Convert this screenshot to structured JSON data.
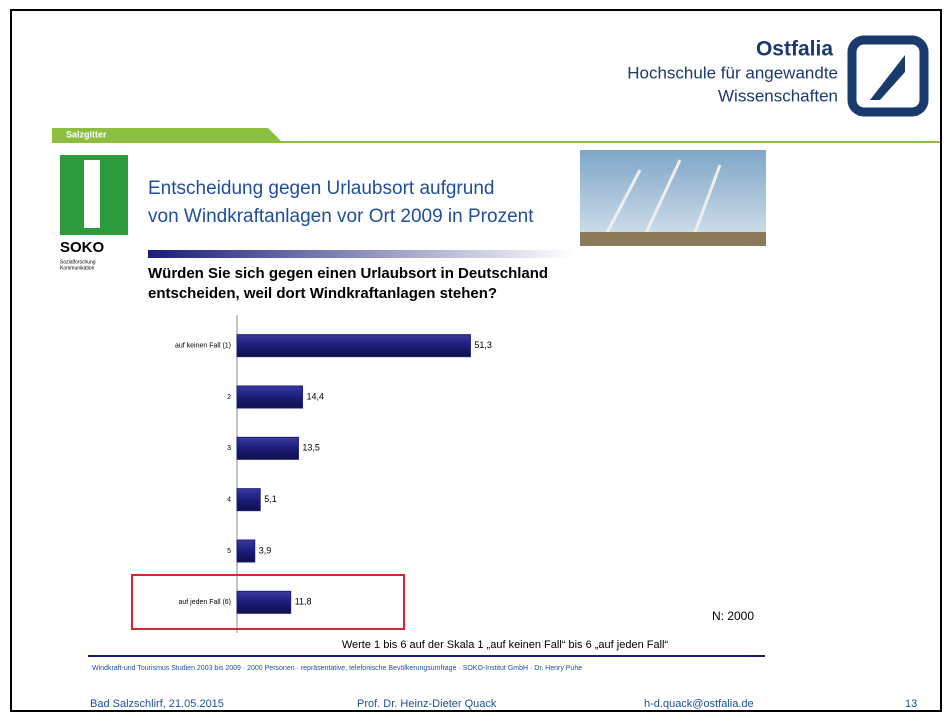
{
  "header": {
    "brand": "Ostfalia",
    "line1": "Hochschule für angewandte",
    "line2": "Wissenschaften",
    "tab": "Salzgitter",
    "logo": "SOKO",
    "logo_sub1": "Sozialforschung",
    "logo_sub2": "Kommunikation"
  },
  "title": {
    "line1": "Entscheidung gegen Urlaubsort aufgrund",
    "line2": "von Windkraftanlagen vor Ort   2009 in Prozent"
  },
  "chart_data": {
    "type": "barh",
    "title": [
      "Würden Sie sich gegen einen Urlaubsort in Deutschland",
      "entscheiden, weil dort Windkraftanlagen stehen?"
    ],
    "categories": [
      "auf keinen Fall (1)",
      "2",
      "3",
      "4",
      "5",
      "auf jeden Fall (6)"
    ],
    "values": [
      51.3,
      14.4,
      13.5,
      5.1,
      3.9,
      11.8
    ],
    "value_labels": [
      "51,3",
      "14,4",
      "13,5",
      "5,1",
      "3,9",
      "11,8"
    ],
    "color": "#1c1c7a",
    "xlim": [
      0,
      60
    ],
    "annotations": [
      "N: 2000",
      "Werte 1 bis 6 auf der Skala 1 „auf keinen Fall“ bis 6 „auf jeden Fall“"
    ]
  },
  "source": "Windkraft-und Tourismus Studien 2003 bis 2009  ·  2000 Personen  ·  repräsentative, telefonische Bevölkerungsumfrage  ·  SOKO-Institut GmbH  ·  Dr. Henry Puhe",
  "footer": {
    "place_date": "Bad Salzschlirf, 21.05.2015",
    "author": "Prof. Dr. Heinz-Dieter Quack",
    "email": "h-d.quack@ostfalia.de",
    "page": "13"
  }
}
